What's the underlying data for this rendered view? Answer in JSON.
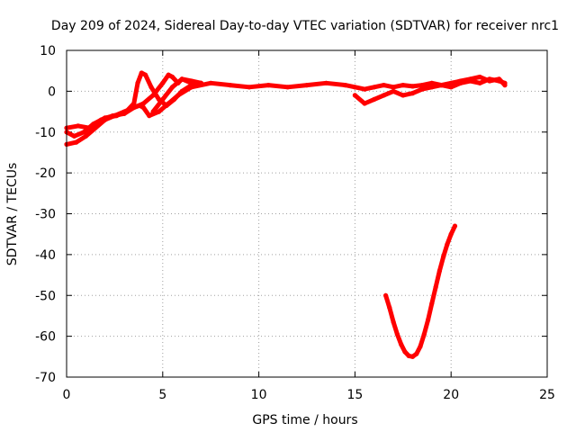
{
  "chart_data": {
    "type": "scatter",
    "title": "Day 209 of 2024, Sidereal Day-to-day VTEC variation (SDTVAR) for receiver nrc1",
    "xlabel": "GPS time / hours",
    "ylabel": "SDTVAR / TECUs",
    "xlim": [
      0,
      25
    ],
    "ylim": [
      -70,
      10
    ],
    "xticks": [
      0,
      5,
      10,
      15,
      20,
      25
    ],
    "yticks": [
      -70,
      -60,
      -50,
      -40,
      -30,
      -20,
      -10,
      0,
      10
    ],
    "grid": true,
    "legend": "none",
    "color": "#ff0000",
    "series": [
      {
        "name": "track-a",
        "x": [
          0.0,
          0.5,
          1.0,
          1.5,
          2.0,
          2.5,
          3.0,
          3.5,
          3.8,
          4.0,
          4.3,
          4.8,
          5.3,
          5.8,
          6.5,
          7.5,
          8.5,
          9.5,
          10.5,
          11.5,
          12.5,
          13.5,
          14.5,
          15.0
        ],
        "y": [
          -13,
          -12.5,
          -11,
          -9,
          -7,
          -6,
          -5,
          -4,
          -3.5,
          -4,
          -6,
          -5,
          -3,
          -1,
          1,
          2,
          1.5,
          1,
          1.5,
          1,
          1.5,
          2,
          1.5,
          1
        ]
      },
      {
        "name": "track-b",
        "x": [
          0.0,
          0.4,
          0.9,
          1.4,
          2.0,
          2.6,
          3.1,
          3.5,
          3.7,
          3.9,
          4.1,
          4.4,
          4.8,
          5.2,
          5.6,
          6.0,
          6.5,
          7.0
        ],
        "y": [
          -10,
          -11,
          -10,
          -8,
          -6.5,
          -6,
          -5,
          -3,
          2,
          4.5,
          4,
          1,
          -2,
          -3.5,
          -2,
          0,
          1.5,
          2
        ]
      },
      {
        "name": "track-c",
        "x": [
          0.0,
          0.6,
          1.2,
          1.8,
          2.4,
          3.0,
          3.5,
          4.0,
          4.5,
          5.0,
          5.3,
          5.5,
          5.8,
          6.0,
          6.5,
          7.0
        ],
        "y": [
          -9,
          -8.5,
          -9,
          -7,
          -6,
          -5.5,
          -4,
          -3,
          -1,
          2,
          4,
          3.5,
          2,
          3,
          2.5,
          2
        ]
      },
      {
        "name": "track-d",
        "x": [
          4.5,
          5.0,
          5.5,
          6.0,
          6.5
        ],
        "y": [
          -5,
          -2,
          1,
          3,
          2
        ]
      },
      {
        "name": "track-e",
        "x": [
          15.0,
          15.5,
          16.0,
          16.5,
          17.0,
          17.5,
          18.0,
          18.5,
          19.0,
          19.5,
          20.0,
          20.5,
          21.0,
          21.5,
          22.0,
          22.5,
          22.8
        ],
        "y": [
          -1,
          -3,
          -2,
          -1,
          0,
          -1,
          -0.5,
          0.5,
          1,
          1.5,
          1,
          2,
          2.5,
          2,
          3,
          2.5,
          2
        ]
      },
      {
        "name": "track-f",
        "x": [
          15.0,
          15.5,
          16.0,
          16.5,
          17.0,
          17.5,
          18.0,
          18.5,
          19.0,
          19.5,
          20.0,
          20.5,
          21.0,
          21.5,
          22.0,
          22.5,
          22.8
        ],
        "y": [
          1,
          0.5,
          1,
          1.5,
          1,
          1.5,
          1.2,
          1.5,
          2,
          1.5,
          2,
          2.5,
          3,
          3.5,
          2.5,
          3,
          1.5
        ]
      },
      {
        "name": "track-g",
        "x": [
          16.6,
          16.8,
          17.0,
          17.2,
          17.4,
          17.6,
          17.8,
          18.0,
          18.2,
          18.4,
          18.6,
          18.8,
          19.0,
          19.2,
          19.4,
          19.6,
          19.8,
          20.0,
          20.2
        ],
        "y": [
          -50,
          -53,
          -56.5,
          -59.5,
          -62,
          -63.8,
          -64.8,
          -65,
          -64.3,
          -62.5,
          -59.5,
          -56,
          -52,
          -48,
          -44,
          -40.5,
          -37.5,
          -35,
          -33
        ]
      }
    ]
  }
}
